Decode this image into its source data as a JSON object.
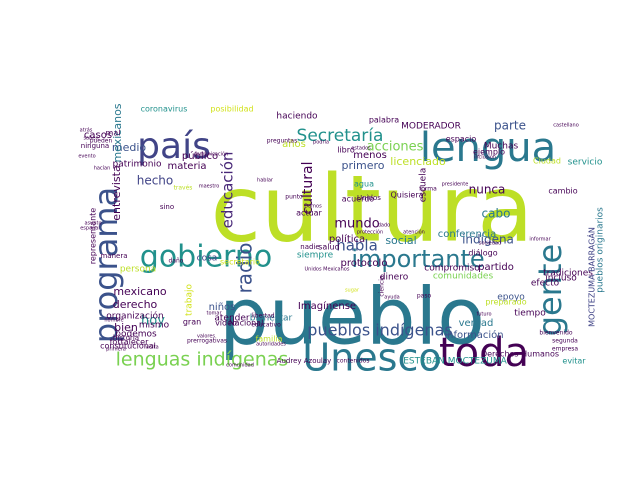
{
  "palette": {
    "lime": "#bddf26",
    "yellow_green": "#d2e21b",
    "green": "#7ad151",
    "light_green": "#5ec962",
    "teal": "#2a788e",
    "teal_dark": "#21918c",
    "aqua": "#22a884",
    "blue": "#3b528b",
    "indigo": "#414487",
    "purple": "#482878",
    "dark_purple": "#440154"
  },
  "words": [
    {
      "text": "cultura",
      "color": "#bddf26"
    },
    {
      "text": "pueblo",
      "color": "#2a788e"
    },
    {
      "text": "Unesco",
      "color": "#2a788e"
    },
    {
      "text": "país",
      "color": "#414487"
    },
    {
      "text": "lengua",
      "color": "#2a788e"
    },
    {
      "text": "toda",
      "color": "#440154"
    },
    {
      "text": "gobierno",
      "color": "#21918c"
    },
    {
      "text": "programa",
      "color": "#3b528b"
    },
    {
      "text": "gente",
      "color": "#2a788e"
    },
    {
      "text": "Secretaría",
      "color": "#21918c"
    },
    {
      "text": "importante",
      "color": "#2a788e"
    },
    {
      "text": "lenguas indígenas",
      "color": "#7ad151"
    },
    {
      "text": "pueblos indígenas",
      "color": "#3b528b"
    },
    {
      "text": "radio",
      "color": "#3b528b"
    },
    {
      "text": "educación",
      "color": "#482878"
    },
    {
      "text": "cultural",
      "color": "#440154"
    },
    {
      "text": "habla",
      "color": "#3b528b"
    },
    {
      "text": "acciones",
      "color": "#7ad151"
    },
    {
      "text": "hoy",
      "color": "#21918c"
    },
    {
      "text": "mundo",
      "color": "#440154"
    },
    {
      "text": "indígena",
      "color": "#3b528b"
    },
    {
      "text": "nunca",
      "color": "#440154"
    },
    {
      "text": "cabo",
      "color": "#2a788e"
    },
    {
      "text": "parte",
      "color": "#3b528b"
    },
    {
      "text": "medio",
      "color": "#3b528b"
    },
    {
      "text": "mexicano",
      "color": "#440154"
    },
    {
      "text": "casos",
      "color": "#440154"
    },
    {
      "text": "hecho",
      "color": "#414487"
    },
    {
      "text": "bien",
      "color": "#440154"
    },
    {
      "text": "derecho",
      "color": "#440154"
    },
    {
      "text": "mexicanos",
      "color": "#2a788e"
    },
    {
      "text": "entrevista",
      "color": "#440154"
    },
    {
      "text": "política",
      "color": "#440154"
    },
    {
      "text": "social",
      "color": "#2a788e"
    },
    {
      "text": "primero",
      "color": "#3b528b"
    },
    {
      "text": "licenciado",
      "color": "#bddf26"
    },
    {
      "text": "conferencia",
      "color": "#2a788e"
    },
    {
      "text": "partido",
      "color": "#440154"
    },
    {
      "text": "verdad",
      "color": "#2a788e"
    },
    {
      "text": "protocolo",
      "color": "#440154"
    },
    {
      "text": "Imagínense",
      "color": "#440154"
    },
    {
      "text": "atender",
      "color": "#440154"
    },
    {
      "text": "bienestar",
      "color": "#2a788e"
    },
    {
      "text": "cosa",
      "color": "#414487"
    },
    {
      "text": "niños",
      "color": "#3b528b"
    },
    {
      "text": "información",
      "color": "#3b528b"
    },
    {
      "text": "Muchas",
      "color": "#440154"
    },
    {
      "text": "materia",
      "color": "#440154"
    },
    {
      "text": "público",
      "color": "#440154"
    },
    {
      "text": "años",
      "color": "#bddf26"
    },
    {
      "text": "menos",
      "color": "#440154"
    },
    {
      "text": "haciendo",
      "color": "#440154"
    },
    {
      "text": "MODERADOR",
      "color": "#440154"
    },
    {
      "text": "coronavirus",
      "color": "#21918c"
    },
    {
      "text": "posibilidad",
      "color": "#d2e21b"
    },
    {
      "text": "palabra",
      "color": "#440154"
    },
    {
      "text": "libro",
      "color": "#440154"
    },
    {
      "text": "agua",
      "color": "#21918c"
    },
    {
      "text": "Unidos",
      "color": "#440154"
    },
    {
      "text": "escuela",
      "color": "#440154"
    },
    {
      "text": "Quisiera",
      "color": "#440154"
    },
    {
      "text": "dinero",
      "color": "#440154"
    },
    {
      "text": "ejemplo",
      "color": "#440154"
    },
    {
      "text": "espacio",
      "color": "#440154"
    },
    {
      "text": "servicio",
      "color": "#21918c"
    },
    {
      "text": "incluso",
      "color": "#440154"
    },
    {
      "text": "tradiciones",
      "color": "#440154"
    },
    {
      "text": "efecto",
      "color": "#440154"
    },
    {
      "text": "tiempo",
      "color": "#440154"
    },
    {
      "text": "epoyo",
      "color": "#3b528b"
    },
    {
      "text": "compromiso",
      "color": "#440154"
    },
    {
      "text": "comunidades",
      "color": "#7ad151"
    },
    {
      "text": "cambio",
      "color": "#440154"
    },
    {
      "text": "Ciudad",
      "color": "#bddf26"
    },
    {
      "text": "pueblos originarios",
      "color": "#2a788e"
    },
    {
      "text": "MOCTEZUMA BARRAGÁN",
      "color": "#414487"
    },
    {
      "text": "ESTEBAN MOCTEZUMA",
      "color": "#21918c"
    },
    {
      "text": "Derechos Humanos",
      "color": "#440154"
    },
    {
      "text": "evitar",
      "color": "#21918c"
    },
    {
      "text": "Audrey Azoulay",
      "color": "#440154"
    },
    {
      "text": "contenidos",
      "color": "#440154"
    },
    {
      "text": "podemos",
      "color": "#440154"
    },
    {
      "text": "organización",
      "color": "#440154"
    },
    {
      "text": "mismo",
      "color": "#440154"
    },
    {
      "text": "fortalecer",
      "color": "#440154"
    },
    {
      "text": "historia",
      "color": "#440154"
    },
    {
      "text": "constitucional",
      "color": "#440154"
    },
    {
      "text": "patrimonio",
      "color": "#440154"
    },
    {
      "text": "persona",
      "color": "#bddf26"
    },
    {
      "text": "trabajo",
      "color": "#d2e21b"
    },
    {
      "text": "gran",
      "color": "#440154"
    },
    {
      "text": "video",
      "color": "#440154"
    },
    {
      "text": "Nacional",
      "color": "#440154"
    },
    {
      "text": "familia",
      "color": "#bddf26"
    },
    {
      "text": "secretario",
      "color": "#d2e21b"
    },
    {
      "text": "siempre",
      "color": "#21918c"
    },
    {
      "text": "salud",
      "color": "#440154"
    },
    {
      "text": "nadie",
      "color": "#440154"
    },
    {
      "text": "actuar",
      "color": "#440154"
    },
    {
      "text": "acuerdo",
      "color": "#440154"
    },
    {
      "text": "diálogo",
      "color": "#440154"
    },
    {
      "text": "preparado",
      "color": "#bddf26"
    },
    {
      "text": "segunda",
      "color": "#440154"
    },
    {
      "text": "empresa",
      "color": "#440154"
    },
    {
      "text": "representante",
      "color": "#440154"
    },
    {
      "text": "manera",
      "color": "#440154"
    },
    {
      "text": "ninguna",
      "color": "#440154"
    },
    {
      "text": "mal",
      "color": "#440154"
    },
    {
      "text": "sino",
      "color": "#440154"
    },
    {
      "text": "visita",
      "color": "#440154"
    },
    {
      "text": "primera",
      "color": "#440154"
    },
    {
      "text": "libertad",
      "color": "#440154"
    },
    {
      "text": "sugar",
      "color": "#d2e21b"
    },
    {
      "text": "ayuda",
      "color": "#440154"
    },
    {
      "text": "paso",
      "color": "#440154"
    },
    {
      "text": "punto",
      "color": "#440154"
    },
    {
      "text": "dado",
      "color": "#440154"
    },
    {
      "text": "ciencia",
      "color": "#440154"
    },
    {
      "text": "forma",
      "color": "#440154"
    },
    {
      "text": "través",
      "color": "#bddf26"
    },
    {
      "text": "comunicación",
      "color": "#440154"
    },
    {
      "text": "maestro",
      "color": "#440154"
    },
    {
      "text": "evento",
      "color": "#440154"
    },
    {
      "text": "hablar",
      "color": "#440154"
    },
    {
      "text": "preguntas",
      "color": "#440154"
    },
    {
      "text": "podría",
      "color": "#440154"
    },
    {
      "text": "Damos",
      "color": "#440154"
    },
    {
      "text": "españal",
      "color": "#440154"
    },
    {
      "text": "daño",
      "color": "#440154"
    },
    {
      "text": "tomar",
      "color": "#440154"
    },
    {
      "text": "educativo",
      "color": "#440154"
    },
    {
      "text": "prerrogativas",
      "color": "#440154"
    },
    {
      "text": "autoridades",
      "color": "#440154"
    },
    {
      "text": "Unidos Mexicanos",
      "color": "#440154"
    },
    {
      "text": "protección",
      "color": "#440154"
    },
    {
      "text": "atención",
      "color": "#440154"
    },
    {
      "text": "comunidad",
      "color": "#440154"
    },
    {
      "text": "castellano",
      "color": "#440154"
    },
    {
      "text": "bienvenido",
      "color": "#440154"
    },
    {
      "text": "informar",
      "color": "#440154"
    },
    {
      "text": "sociedad",
      "color": "#440154"
    },
    {
      "text": "futuro",
      "color": "#440154"
    },
    {
      "text": "presidente",
      "color": "#440154"
    },
    {
      "text": "inclusión",
      "color": "#440154"
    },
    {
      "text": "estados",
      "color": "#440154"
    },
    {
      "text": "valores",
      "color": "#440154"
    },
    {
      "text": "pueden",
      "color": "#440154"
    },
    {
      "text": "atrás",
      "color": "#440154"
    },
    {
      "text": "saben",
      "color": "#440154"
    },
    {
      "text": "nombre",
      "color": "#440154"
    },
    {
      "text": "hacían",
      "color": "#440154"
    },
    {
      "text": "asunto",
      "color": "#440154"
    }
  ]
}
